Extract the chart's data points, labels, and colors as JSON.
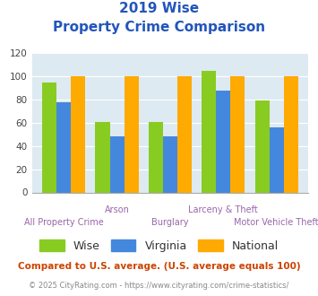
{
  "title_line1": "2019 Wise",
  "title_line2": "Property Crime Comparison",
  "categories": [
    "All Property Crime",
    "Arson",
    "Burglary",
    "Larceny & Theft",
    "Motor Vehicle Theft"
  ],
  "wise": [
    95,
    61,
    61,
    105,
    79
  ],
  "virginia": [
    78,
    48,
    48,
    88,
    56
  ],
  "national": [
    100,
    100,
    100,
    100,
    100
  ],
  "color_wise": "#88cc22",
  "color_virginia": "#4488dd",
  "color_national": "#ffaa00",
  "ylim": [
    0,
    120
  ],
  "yticks": [
    0,
    20,
    40,
    60,
    80,
    100,
    120
  ],
  "xlabel_top": [
    "",
    "Arson",
    "",
    "Larceny & Theft",
    ""
  ],
  "xlabel_bottom": [
    "All Property Crime",
    "",
    "Burglary",
    "",
    "Motor Vehicle Theft"
  ],
  "footnote1": "Compared to U.S. average. (U.S. average equals 100)",
  "footnote2": "© 2025 CityRating.com - https://www.cityrating.com/crime-statistics/",
  "title_color": "#2255bb",
  "xlabel_color": "#9966aa",
  "footnote1_color": "#cc4400",
  "footnote2_color": "#888888",
  "legend_labels": [
    "Wise",
    "Virginia",
    "National"
  ],
  "bg_color": "#ddeaf2"
}
